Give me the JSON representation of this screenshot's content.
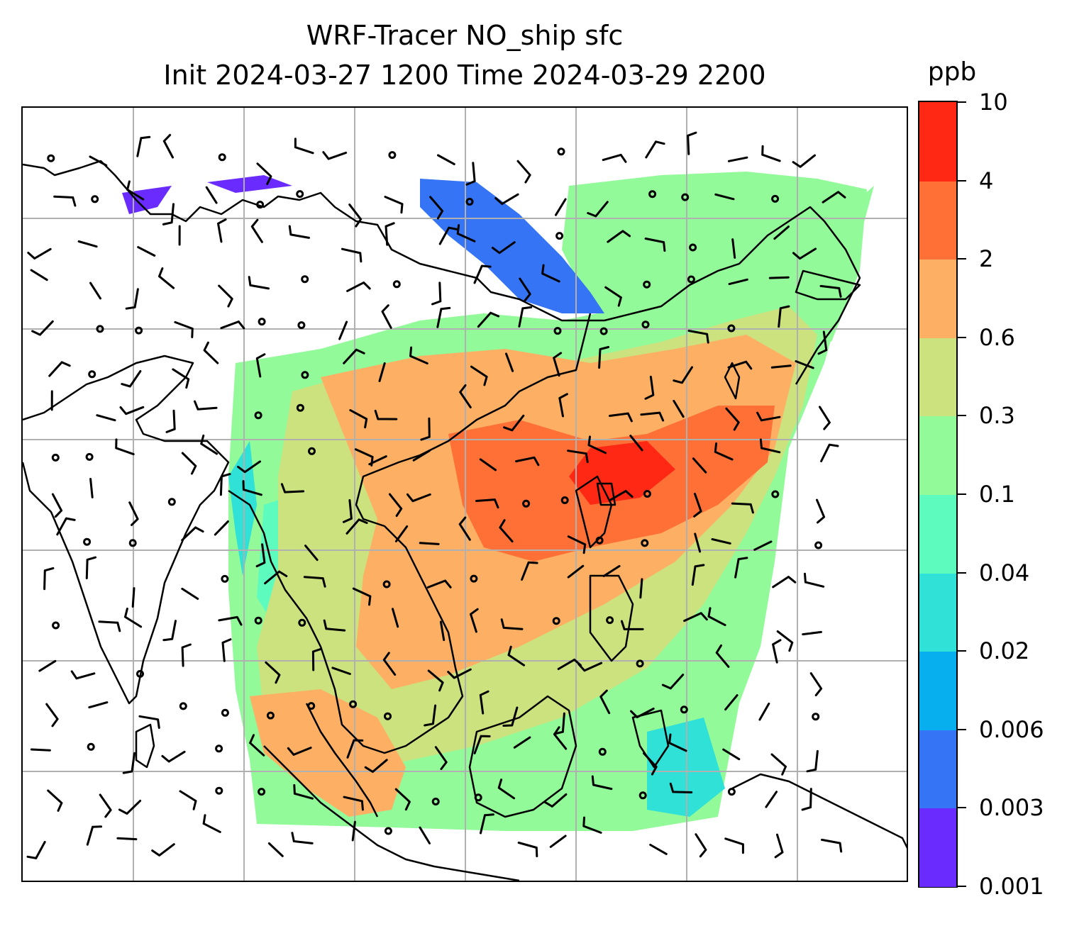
{
  "title": {
    "line1": "WRF-Tracer NO_ship sfc",
    "line2": "Init 2024-03-27 1200 Time 2024-03-29 2200"
  },
  "colorbar": {
    "units": "ppb",
    "levels": [
      "0.001",
      "0.003",
      "0.006",
      "0.02",
      "0.04",
      "0.1",
      "0.3",
      "0.6",
      "2",
      "4",
      "10"
    ],
    "colors": [
      "#6a2bff",
      "#3574f4",
      "#08afee",
      "#2fe1d6",
      "#5dfcbe",
      "#93fa9a",
      "#cbe27f",
      "#fdb063",
      "#ff7037",
      "#ff2814"
    ]
  },
  "colors": {
    "gridline": "#b0b0b0",
    "coastline": "#000000",
    "wind_barb": "#000000"
  },
  "map_content": {
    "field": "NO_ship surface concentration",
    "overlays": [
      "coastlines",
      "lat-lon gridlines",
      "wind barbs"
    ]
  }
}
